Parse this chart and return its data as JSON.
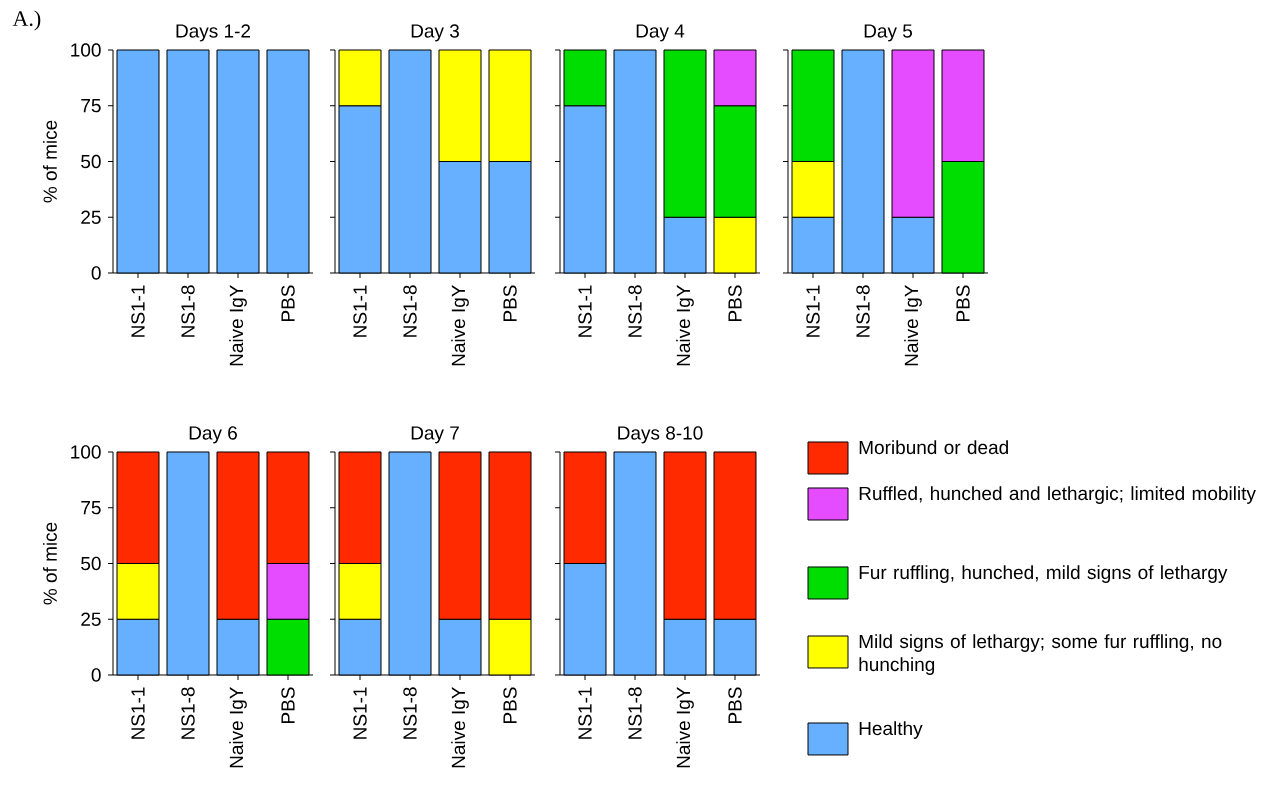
{
  "chart_data": [
    {
      "type": "bar",
      "stacked": true,
      "title": "Days 1-2",
      "ylabel": "% of mice",
      "annotations": [
        "A.)"
      ],
      "categories": [
        "NS1-1",
        "NS1-8",
        "Naive IgY",
        "PBS"
      ],
      "ylim": [
        0,
        100
      ],
      "yticks": [
        0,
        25,
        50,
        75,
        100
      ],
      "series": [
        {
          "color": "#66b0ff",
          "values": [
            100,
            100,
            100,
            100
          ]
        },
        {
          "color": "#ffff00",
          "values": [
            null,
            null,
            null,
            null
          ]
        },
        {
          "color": "#00dd00",
          "values": [
            null,
            null,
            null,
            null
          ]
        },
        {
          "color": "#e64cff",
          "values": [
            null,
            null,
            null,
            null
          ]
        },
        {
          "color": "#ff2a00",
          "values": [
            null,
            null,
            null,
            null
          ]
        }
      ]
    },
    {
      "type": "bar",
      "stacked": true,
      "title": "Day 3",
      "tick_labels": "x",
      "categories": [
        "NS1-1",
        "NS1-8",
        "Naive IgY",
        "PBS"
      ],
      "ylim": [
        0,
        100
      ],
      "yticks": [
        0,
        25,
        50,
        75,
        100
      ],
      "series": [
        {
          "color": "#66b0ff",
          "values": [
            75,
            100,
            50,
            50
          ]
        },
        {
          "color": "#ffff00",
          "values": [
            25,
            null,
            50,
            50
          ]
        },
        {
          "color": "#00dd00",
          "values": [
            null,
            null,
            null,
            null
          ]
        },
        {
          "color": "#e64cff",
          "values": [
            null,
            null,
            null,
            null
          ]
        },
        {
          "color": "#ff2a00",
          "values": [
            null,
            null,
            null,
            null
          ]
        }
      ]
    },
    {
      "type": "bar",
      "stacked": true,
      "title": "Day 4",
      "tick_labels": "x",
      "categories": [
        "NS1-1",
        "NS1-8",
        "Naive IgY",
        "PBS"
      ],
      "ylim": [
        0,
        100
      ],
      "yticks": [
        0,
        25,
        50,
        75,
        100
      ],
      "series": [
        {
          "color": "#66b0ff",
          "values": [
            75,
            100,
            25,
            null
          ]
        },
        {
          "color": "#ffff00",
          "values": [
            null,
            null,
            null,
            25
          ]
        },
        {
          "color": "#00dd00",
          "values": [
            25,
            null,
            75,
            50
          ]
        },
        {
          "color": "#e64cff",
          "values": [
            null,
            null,
            null,
            25
          ]
        },
        {
          "color": "#ff2a00",
          "values": [
            null,
            null,
            null,
            null
          ]
        }
      ]
    },
    {
      "type": "bar",
      "stacked": true,
      "title": "Day 5",
      "tick_labels": "x",
      "categories": [
        "NS1-1",
        "NS1-8",
        "Naive IgY",
        "PBS"
      ],
      "ylim": [
        0,
        100
      ],
      "yticks": [
        0,
        25,
        50,
        75,
        100
      ],
      "series": [
        {
          "color": "#66b0ff",
          "values": [
            25,
            100,
            25,
            null
          ]
        },
        {
          "color": "#ffff00",
          "values": [
            25,
            null,
            null,
            null
          ]
        },
        {
          "color": "#00dd00",
          "values": [
            50,
            null,
            null,
            50
          ]
        },
        {
          "color": "#e64cff",
          "values": [
            null,
            null,
            75,
            50
          ]
        },
        {
          "color": "#ff2a00",
          "values": [
            null,
            null,
            null,
            null
          ]
        }
      ]
    },
    {
      "type": "bar",
      "stacked": true,
      "title": "Day 6",
      "ylabel": "% of mice",
      "categories": [
        "NS1-1",
        "NS1-8",
        "Naive IgY",
        "PBS"
      ],
      "ylim": [
        0,
        100
      ],
      "yticks": [
        0,
        25,
        50,
        75,
        100
      ],
      "series": [
        {
          "color": "#66b0ff",
          "values": [
            25,
            100,
            25,
            null
          ]
        },
        {
          "color": "#ffff00",
          "values": [
            25,
            null,
            null,
            null
          ]
        },
        {
          "color": "#00dd00",
          "values": [
            null,
            null,
            null,
            25
          ]
        },
        {
          "color": "#e64cff",
          "values": [
            null,
            null,
            null,
            25
          ]
        },
        {
          "color": "#ff2a00",
          "values": [
            50,
            null,
            75,
            50
          ]
        }
      ]
    },
    {
      "type": "bar",
      "stacked": true,
      "title": "Day 7",
      "tick_labels": "x",
      "categories": [
        "NS1-1",
        "NS1-8",
        "Naive IgY",
        "PBS"
      ],
      "ylim": [
        0,
        100
      ],
      "yticks": [
        0,
        25,
        50,
        75,
        100
      ],
      "series": [
        {
          "color": "#66b0ff",
          "values": [
            25,
            100,
            25,
            null
          ]
        },
        {
          "color": "#ffff00",
          "values": [
            25,
            null,
            null,
            25
          ]
        },
        {
          "color": "#00dd00",
          "values": [
            null,
            null,
            null,
            null
          ]
        },
        {
          "color": "#e64cff",
          "values": [
            null,
            null,
            null,
            null
          ]
        },
        {
          "color": "#ff2a00",
          "values": [
            50,
            null,
            75,
            75
          ]
        }
      ]
    },
    {
      "type": "bar",
      "stacked": true,
      "title": "Days 8-10",
      "tick_labels": "x",
      "legend": "right",
      "categories": [
        "NS1-1",
        "NS1-8",
        "Naive IgY",
        "PBS"
      ],
      "ylim": [
        0,
        100
      ],
      "yticks": [
        0,
        25,
        50,
        75,
        100
      ],
      "series": [
        {
          "name": "Healthy",
          "color": "#66b0ff",
          "values": [
            50,
            100,
            25,
            25
          ]
        },
        {
          "name": "Mild signs of lethargy; some fur ruffling, no hunching",
          "color": "#ffff00",
          "values": [
            null,
            null,
            null,
            null
          ]
        },
        {
          "name": "Fur ruffling, hunched, mild signs of lethargy",
          "color": "#00dd00",
          "values": [
            null,
            null,
            null,
            null
          ]
        },
        {
          "name": "Ruffled, hunched and lethargic; limited mobility",
          "color": "#e64cff",
          "values": [
            null,
            null,
            null,
            null
          ]
        },
        {
          "name": "Moribund or dead",
          "color": "#ff2a00",
          "values": [
            50,
            null,
            75,
            75
          ]
        }
      ]
    }
  ]
}
